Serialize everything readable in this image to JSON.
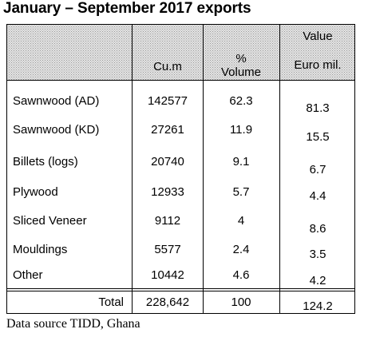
{
  "title": "January – September 2017 exports",
  "columns": {
    "cum": "Cu.m",
    "volume_line1": "%",
    "volume_line2": "Volume",
    "value_line1": "Value",
    "value_line2": "Euro mil."
  },
  "rows": [
    {
      "product": "Sawnwood (AD)",
      "cum": "142577",
      "volume": "62.3",
      "value": "81.3"
    },
    {
      "product": "Sawnwood (KD)",
      "cum": "27261",
      "volume": "11.9",
      "value": "15.5"
    },
    {
      "product": "Billets (logs)",
      "cum": "20740",
      "volume": "9.1",
      "value": "6.7"
    },
    {
      "product": "Plywood",
      "cum": "12933",
      "volume": "5.7",
      "value": "4.4"
    },
    {
      "product": "Sliced Veneer",
      "cum": "9112",
      "volume": "4",
      "value": "8.6"
    },
    {
      "product": "Mouldings",
      "cum": "5577",
      "volume": "2.4",
      "value": "3.5"
    },
    {
      "product": "Other",
      "cum": "10442",
      "volume": "4.6",
      "value": "4.2"
    }
  ],
  "total": {
    "label": "Total",
    "cum": "228,642",
    "volume": "100",
    "value": "124.2"
  },
  "source": "Data source TIDD, Ghana",
  "colors": {
    "header_fill": "#dcdcdc",
    "border": "#000000"
  }
}
